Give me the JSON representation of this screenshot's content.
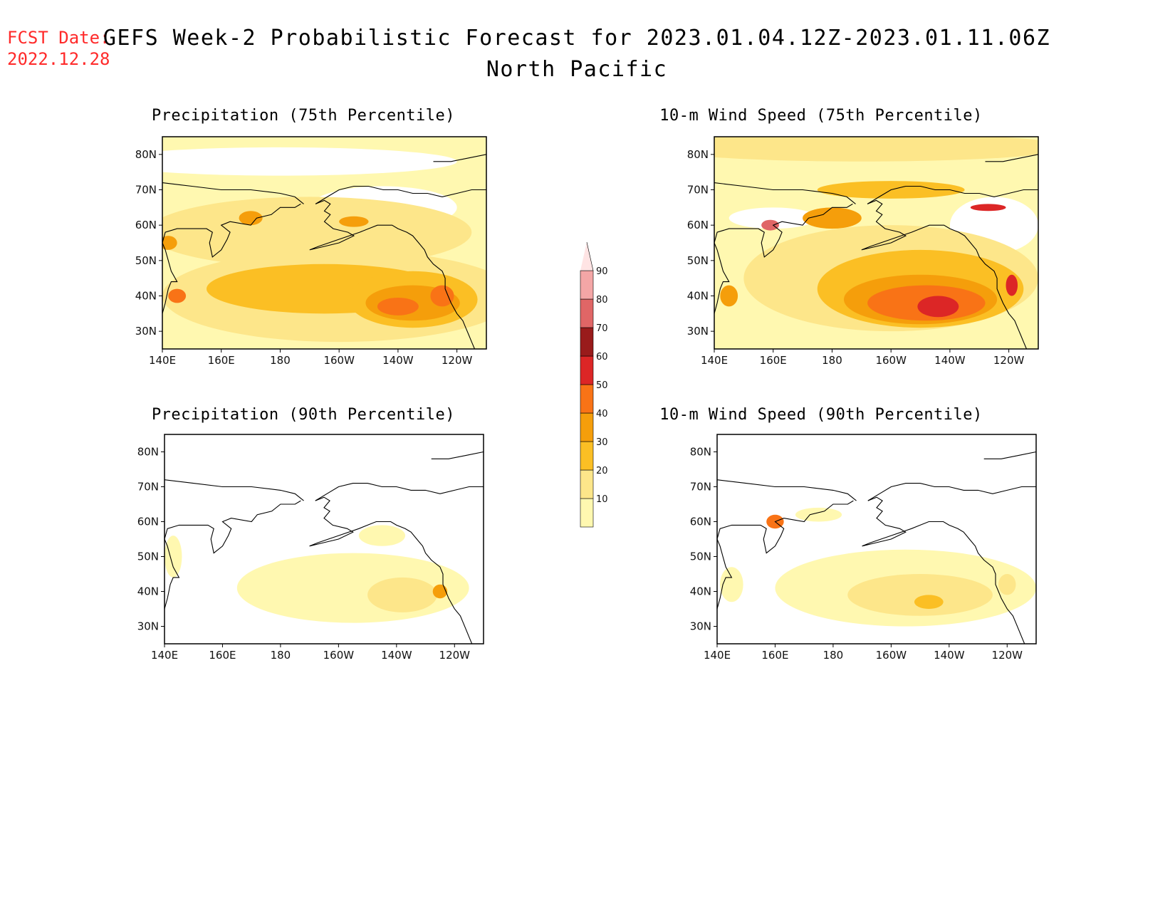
{
  "header": {
    "fcst_label": "FCST Date:",
    "fcst_date": "2022.12.28",
    "title_line1": "GEFS Week-2 Probabilistic Forecast for 2023.01.04.12Z-2023.01.11.06Z",
    "title_line2": "North Pacific"
  },
  "panels": [
    {
      "title": "Precipitation (75th Percentile)"
    },
    {
      "title": "10-m Wind Speed (75th Percentile)"
    },
    {
      "title": "Precipitation (90th Percentile)"
    },
    {
      "title": "10-m Wind Speed (90th Percentile)"
    }
  ],
  "axes": {
    "lat_labels": [
      "80N",
      "70N",
      "60N",
      "50N",
      "40N",
      "30N"
    ],
    "lon_labels": [
      "140E",
      "160E",
      "180",
      "160W",
      "140W",
      "120W"
    ]
  },
  "colorbar": {
    "levels": [
      "10",
      "20",
      "30",
      "40",
      "50",
      "60",
      "70",
      "80",
      "90"
    ],
    "colors": [
      "#fff8b0",
      "#fde68a",
      "#fbbf24",
      "#f59e0b",
      "#f97316",
      "#dc2626",
      "#991b1b",
      "#e06666",
      "#f4a6a6",
      "#ffe4e4"
    ]
  },
  "map_data": [
    {
      "panel": "precip75",
      "background_level": "10-20",
      "max_region": "40N 140W",
      "max_level": "50-60"
    },
    {
      "panel": "wind75",
      "background_level": "10-30",
      "max_region": "37N 145W",
      "max_level": "50-60"
    },
    {
      "panel": "precip90",
      "background_level": "<10",
      "max_region": "40N 125W",
      "max_level": "30-40"
    },
    {
      "panel": "wind90",
      "background_level": "<10",
      "max_region": "37N 145W",
      "max_level": "30-40"
    }
  ]
}
